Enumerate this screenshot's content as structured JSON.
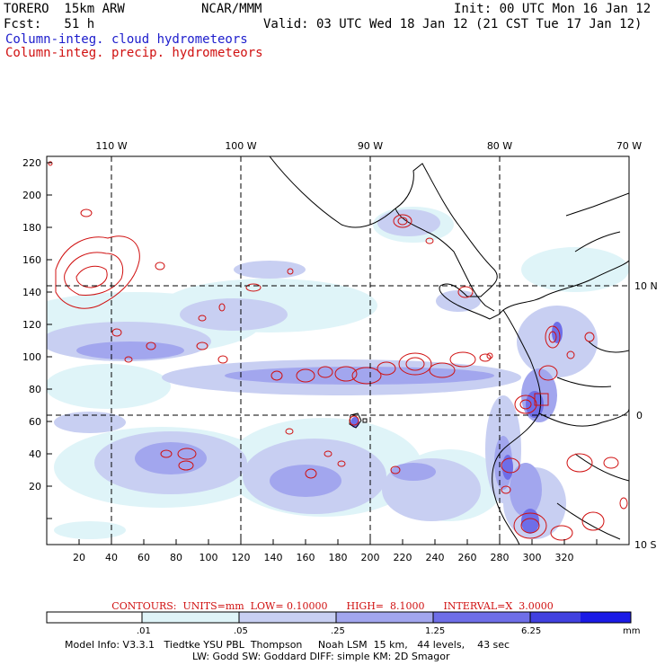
{
  "header": {
    "model": "TORERO  15km ARW",
    "forecast": "Fcst:   51 h",
    "center": "NCAR/MMM",
    "init": "Init: 00 UTC Mon 16 Jan 12",
    "valid": "Valid: 03 UTC Wed 18 Jan 12 (21 CST Tue 17 Jan 12)",
    "field_cloud": "Column-integ. cloud hydrometeors",
    "field_precip": "Column-integ. precip. hydrometeors"
  },
  "map": {
    "lon_labels": [
      "110 W",
      "100 W",
      "90 W",
      "80 W",
      "70 W"
    ],
    "lat_labels": [
      "10 N",
      "0",
      "10 S"
    ],
    "y_ticks": [
      "220",
      "200",
      "180",
      "160",
      "140",
      "120",
      "100",
      "80",
      "60",
      "40",
      "20"
    ],
    "x_ticks": [
      "20",
      "40",
      "60",
      "80",
      "100",
      "120",
      "140",
      "160",
      "180",
      "200",
      "220",
      "240",
      "260",
      "280",
      "300",
      "320"
    ]
  },
  "contours": {
    "text": "CONTOURS:  UNITS=mm  LOW= 0.10000      HIGH=  8.1000      INTERVAL=X  3.0000"
  },
  "colorbar": {
    "levels": [
      ".01",
      ".05",
      ".25",
      "1.25",
      "6.25"
    ],
    "units": "mm",
    "colors": [
      "#ffffff",
      "#dff4f8",
      "#c8cff2",
      "#a2a6ee",
      "#6e6ee8",
      "#4141e0",
      "#1a1ae6"
    ]
  },
  "model_info": {
    "line1": "Model Info: V3.3.1   Tiedtke YSU PBL  Thompson     Noah LSM  15 km,   44 levels,    43 sec",
    "line2": "LW: Godd SW: Goddard DIFF: simple KM: 2D Smagor"
  }
}
